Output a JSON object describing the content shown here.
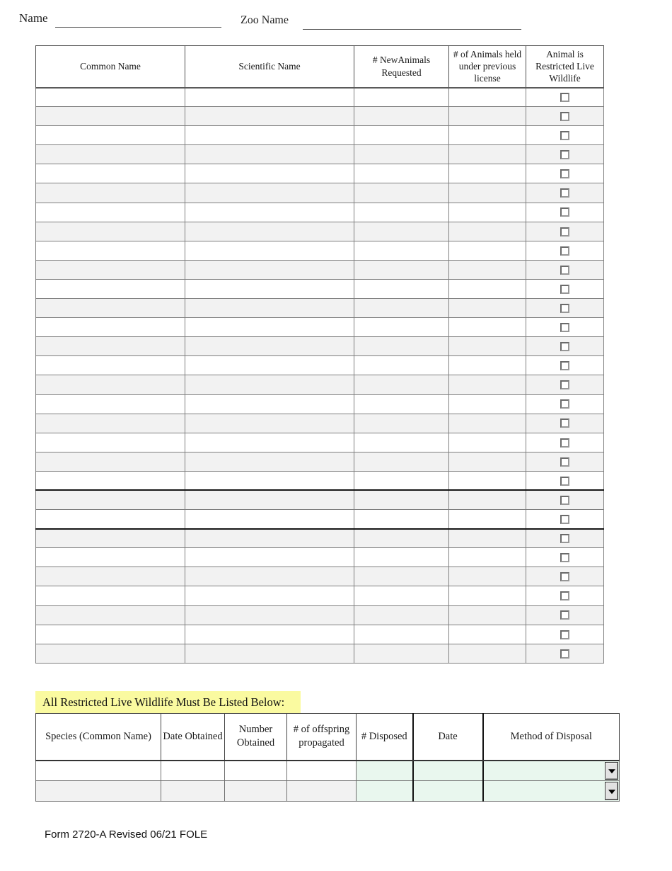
{
  "page": {
    "header": {
      "name_label": "Name",
      "zoo_name_label": "Zoo Name",
      "name_value": "",
      "zoo_name_value": ""
    },
    "tables": {
      "animals": {
        "headers": [
          "Common Name",
          "Scientific Name",
          "# NewAnimals Requested",
          "# of Animals held under previous license",
          "Animal is Restricted Live Wildlife"
        ],
        "row_count": 30,
        "thick_border_rows": [
          22,
          24
        ],
        "cells_empty": true,
        "checkboxes_checked": false
      },
      "restricted": {
        "headers": [
          "Species (Common Name)",
          "Date Obtained",
          "Number Obtained",
          "# of offspring propagated",
          "# Disposed",
          "Date",
          "Method of Disposal"
        ],
        "row_count": 2,
        "cells_empty": true,
        "dropdown_icon": "chevron-down",
        "dropdown_selected_value": ""
      }
    },
    "restricted_note": "All Restricted Live Wildlife Must Be Listed Below:",
    "footer": "Form 2720-A Revised 06/21 FOLE",
    "colors": {
      "highlight_yellow": "#fafaa0",
      "alt_row_gray": "#f2f2f2",
      "field_green": "#e9f7ee",
      "grid_border": "#7f7f7f",
      "thick_border_black": "#161616"
    }
  }
}
